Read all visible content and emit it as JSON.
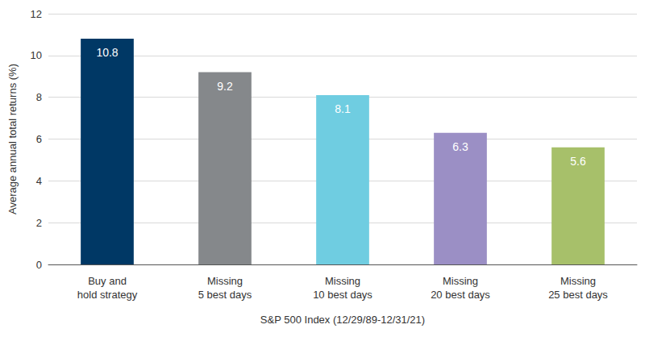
{
  "chart_data": {
    "type": "bar",
    "categories": [
      "Buy and\nhold strategy",
      "Missing\n5 best days",
      "Missing\n10 best days",
      "Missing\n20 best days",
      "Missing\n25 best days"
    ],
    "values": [
      10.8,
      9.2,
      8.1,
      6.3,
      5.6
    ],
    "colors": [
      "#003865",
      "#85888b",
      "#6fcde1",
      "#9b8fc5",
      "#a7c06a"
    ],
    "x_label": "S&P 500 Index (12/29/89-12/31/21)",
    "y_label": "Average annual total returns (%)",
    "ylim": [
      0,
      12
    ],
    "yticks": [
      0,
      2,
      4,
      6,
      8,
      10,
      12
    ],
    "grid": true,
    "data_labels": true
  }
}
